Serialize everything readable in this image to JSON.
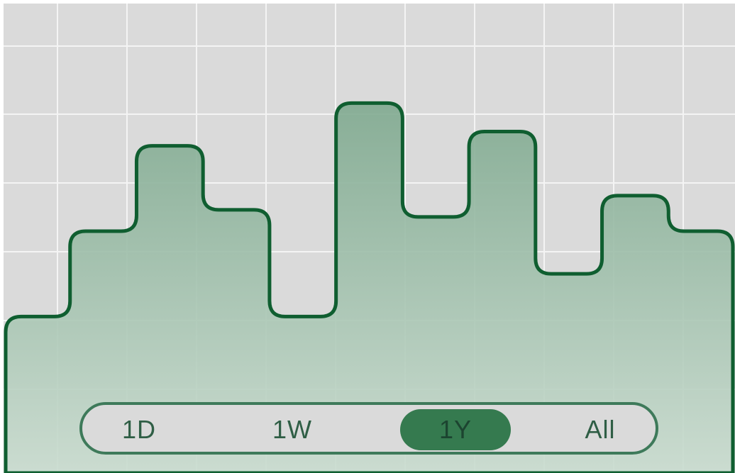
{
  "chart_data": {
    "type": "area",
    "step": true,
    "x": [
      0,
      1,
      2,
      3,
      4,
      5,
      6,
      7,
      8,
      9,
      10
    ],
    "values": [
      2.2,
      3.4,
      4.6,
      3.7,
      2.2,
      5.2,
      3.6,
      4.8,
      2.8,
      3.9,
      3.4
    ],
    "ylim": [
      0,
      6.6
    ],
    "grid": true,
    "title": "",
    "xlabel": "",
    "ylabel": ""
  },
  "colors": {
    "background": "#dadada",
    "grid": "#f4f4f4",
    "line": "#0f5e30",
    "fill_top": "#7fa98f",
    "fill_bottom": "#c9dccf",
    "active": "#357a4f"
  },
  "range_selector": {
    "options": [
      {
        "label": "1D"
      },
      {
        "label": "1W"
      },
      {
        "label": "1Y"
      },
      {
        "label": "All"
      }
    ],
    "selected": "1Y"
  }
}
